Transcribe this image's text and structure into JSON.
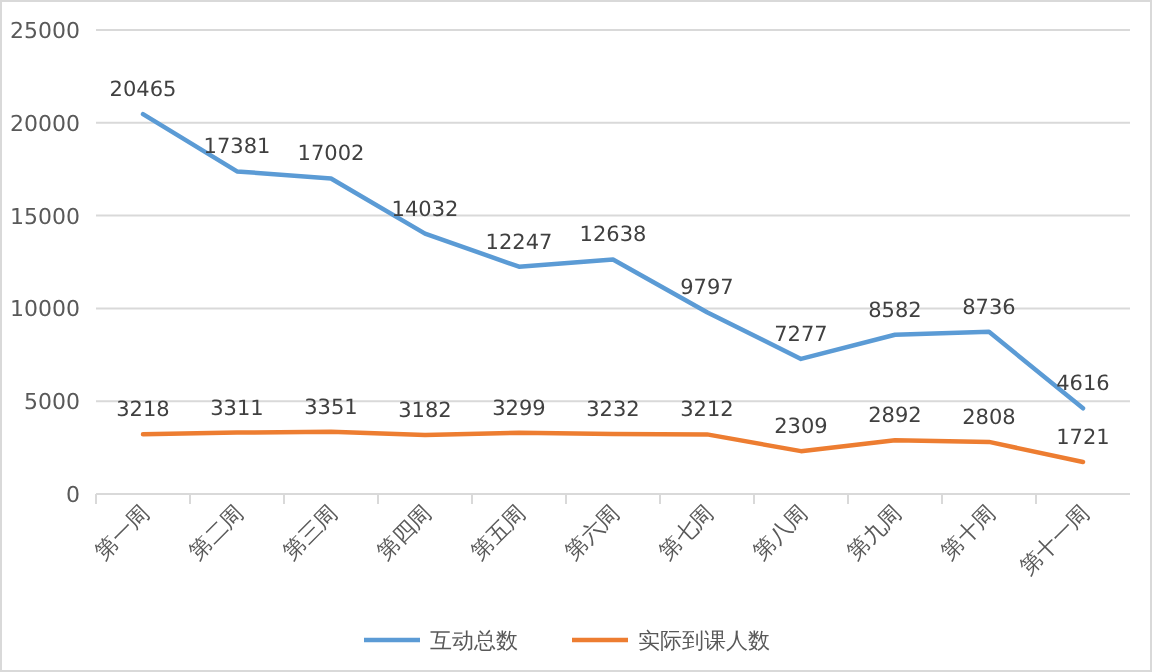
{
  "chart_data": {
    "type": "line",
    "categories": [
      "第一周",
      "第二周",
      "第三周",
      "第四周",
      "第五周",
      "第六周",
      "第七周",
      "第八周",
      "第九周",
      "第十周",
      "第十一周"
    ],
    "series": [
      {
        "name": "互动总数",
        "color": "#5b9bd5",
        "values": [
          20465,
          17381,
          17002,
          14032,
          12247,
          12638,
          9797,
          7277,
          8582,
          8736,
          4616
        ]
      },
      {
        "name": "实际到课人数",
        "color": "#ed7d31",
        "values": [
          3218,
          3311,
          3351,
          3182,
          3299,
          3232,
          3212,
          2309,
          2892,
          2808,
          1721
        ]
      }
    ],
    "ylim": [
      0,
      25000
    ],
    "yticks": [
      0,
      5000,
      10000,
      15000,
      20000,
      25000
    ],
    "grid": "y",
    "legend": "bottom",
    "data_labels": true,
    "marker": "none",
    "line_style": "solid"
  }
}
